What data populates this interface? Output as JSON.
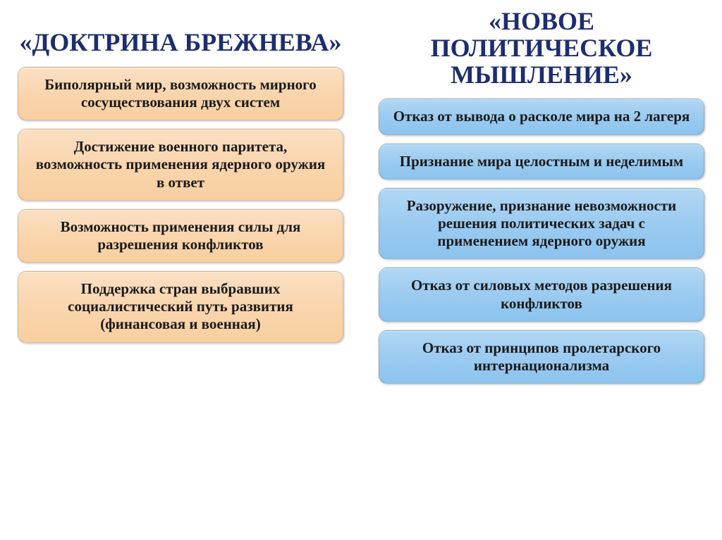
{
  "left": {
    "title": "«ДОКТРИНА БРЕЖНЕВА»",
    "boxes": [
      "Биполярный мир, возможность мирного сосуществования двух систем",
      "Достижение военного паритета, возможность применения ядерного оружия в ответ",
      "Возможность применения силы для разрешения конфликтов",
      "Поддержка стран выбравших социалистический путь развития (финансовая и военная)"
    ]
  },
  "right": {
    "title": "«НОВОЕ ПОЛИТИЧЕСКОЕ МЫШЛЕНИЕ»",
    "boxes": [
      "Отказ от вывода о расколе мира на 2 лагеря",
      "Признание мира целостным и неделимым",
      "Разоружение, признание невозможности решения политических задач с применением ядерного оружия",
      "Отказ от силовых методов разрешения конфликтов",
      "Отказ от принципов пролетарского интернационализма"
    ]
  },
  "colors": {
    "heading": "#1d2d6e",
    "left_box_bg_top": "#fae0c3",
    "left_box_bg_bottom": "#f8cfa1",
    "right_box_bg_top": "#b2d7f4",
    "right_box_bg_bottom": "#8cc3ee",
    "text": "#1a1a1a",
    "background": "#ffffff"
  },
  "typography": {
    "heading_fontsize": 36,
    "box_fontsize": 21,
    "font_family": "Georgia, serif",
    "font_weight": "bold"
  },
  "layout": {
    "type": "two-column-comparison",
    "border_radius": 12,
    "column_gap": 50,
    "box_gap": 12
  }
}
